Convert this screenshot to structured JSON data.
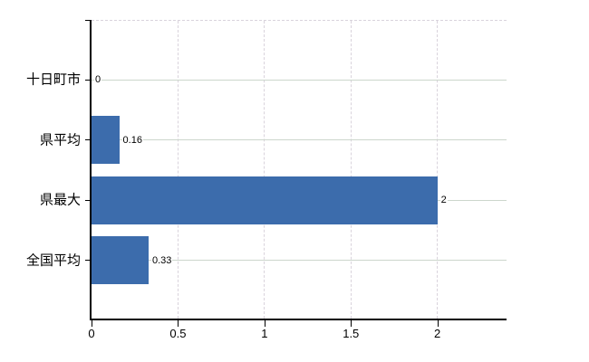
{
  "chart_data": {
    "type": "bar",
    "orientation": "horizontal",
    "title": "",
    "xlabel": "",
    "ylabel": "",
    "categories": [
      "十日町市",
      "県平均",
      "県最大",
      "全国平均"
    ],
    "values": [
      0,
      0.16,
      2,
      0.33
    ],
    "value_labels": [
      "0",
      "0.16",
      "2",
      "0.33"
    ],
    "xlim": [
      0,
      2.4
    ],
    "x_ticks": [
      0,
      0.5,
      1,
      1.5,
      2
    ],
    "x_tick_labels": [
      "0",
      "0.5",
      "1",
      "1.5",
      "2"
    ],
    "grid": true,
    "legend": false,
    "colors": {
      "bar": "#3c6cac",
      "h_gridline": "#ccd6cc",
      "dashed_gridline": "#d9d3dc",
      "axis": "#000000",
      "background": "#ffffff",
      "text": "#000000"
    }
  }
}
